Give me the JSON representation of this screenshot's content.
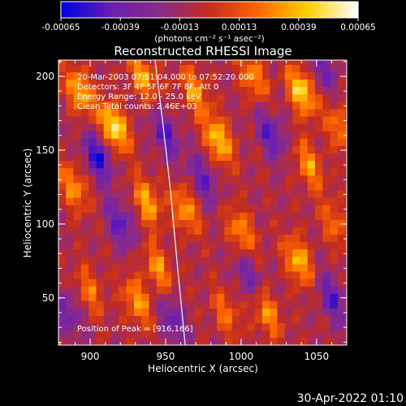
{
  "chart_data": {
    "type": "heatmap",
    "title": "Reconstructed RHESSI Image",
    "xlabel": "Heliocentric X (arcsec)",
    "ylabel": "Heliocentric Y (arcsec)",
    "xlim": [
      879,
      1070
    ],
    "ylim": [
      18,
      211
    ],
    "xticks": [
      900,
      950,
      1000,
      1050
    ],
    "yticks": [
      50,
      100,
      150,
      200
    ],
    "xticklabels": [
      "900",
      "950",
      "1000",
      "1050"
    ],
    "yticklabels": [
      "50",
      "100",
      "150",
      "200"
    ],
    "colorbar": {
      "min": -0.00065,
      "max": 0.00065,
      "ticks": [
        "-0.00065",
        "-0.00039",
        "-0.00013",
        "0.00013",
        "0.00039",
        "0.00065"
      ],
      "units": "(photons cm⁻² s⁻¹ asec⁻²)",
      "colors": [
        "#0000e0",
        "#6a1fb0",
        "#8a2b8a",
        "#c42c1e",
        "#ff6600",
        "#ffd000",
        "#ffffff"
      ]
    },
    "annotations": [
      "20-Mar-2003 07:51:04.000 to 07:52:20.000",
      "Detectors: 3F 4F 5F 6F 7F 8F, Att 0",
      "Energy Range: 12.0 - 25.0 keV",
      "Clean     Total counts: 2.46E+03"
    ],
    "peak": {
      "label": "Position of Peak = [916,166]",
      "x": 916,
      "y": 166
    },
    "limb_curve": {
      "x": [
        943,
        948,
        953,
        958,
        963
      ],
      "y": [
        211,
        170,
        125,
        70,
        18
      ]
    },
    "hot_spots": [
      {
        "x": 916,
        "y": 166,
        "v": 0.00065
      },
      {
        "x": 893,
        "y": 190,
        "v": 0.0005
      },
      {
        "x": 889,
        "y": 125,
        "v": 0.0004
      },
      {
        "x": 935,
        "y": 200,
        "v": 0.00045
      },
      {
        "x": 938,
        "y": 115,
        "v": 0.00045
      },
      {
        "x": 931,
        "y": 48,
        "v": 0.00043
      },
      {
        "x": 945,
        "y": 70,
        "v": 0.0004
      },
      {
        "x": 963,
        "y": 110,
        "v": 0.00042
      },
      {
        "x": 969,
        "y": 190,
        "v": 0.0004
      },
      {
        "x": 985,
        "y": 157,
        "v": 0.00055
      },
      {
        "x": 1000,
        "y": 95,
        "v": 0.0004
      },
      {
        "x": 1008,
        "y": 200,
        "v": 0.0004
      },
      {
        "x": 1040,
        "y": 190,
        "v": 0.0006
      },
      {
        "x": 1045,
        "y": 140,
        "v": 0.0004
      },
      {
        "x": 1038,
        "y": 75,
        "v": 0.0005
      },
      {
        "x": 1017,
        "y": 40,
        "v": 0.0004
      },
      {
        "x": 1065,
        "y": 165,
        "v": 0.00035
      },
      {
        "x": 900,
        "y": 55,
        "v": 0.0003
      },
      {
        "x": 990,
        "y": 40,
        "v": 0.0003
      },
      {
        "x": 1062,
        "y": 100,
        "v": 0.0003
      }
    ],
    "cold_spots": [
      {
        "x": 905,
        "y": 145,
        "v": -0.0005
      },
      {
        "x": 920,
        "y": 100,
        "v": -0.0004
      },
      {
        "x": 950,
        "y": 160,
        "v": -0.0004
      },
      {
        "x": 975,
        "y": 130,
        "v": -0.00035
      },
      {
        "x": 1020,
        "y": 160,
        "v": -0.0004
      },
      {
        "x": 1060,
        "y": 50,
        "v": -0.0004
      },
      {
        "x": 955,
        "y": 35,
        "v": -0.00035
      },
      {
        "x": 1055,
        "y": 205,
        "v": -0.0003
      },
      {
        "x": 885,
        "y": 40,
        "v": -0.0003
      },
      {
        "x": 1005,
        "y": 65,
        "v": -0.0003
      }
    ]
  },
  "footer": {
    "date": "30-Apr-2022 01:10"
  }
}
